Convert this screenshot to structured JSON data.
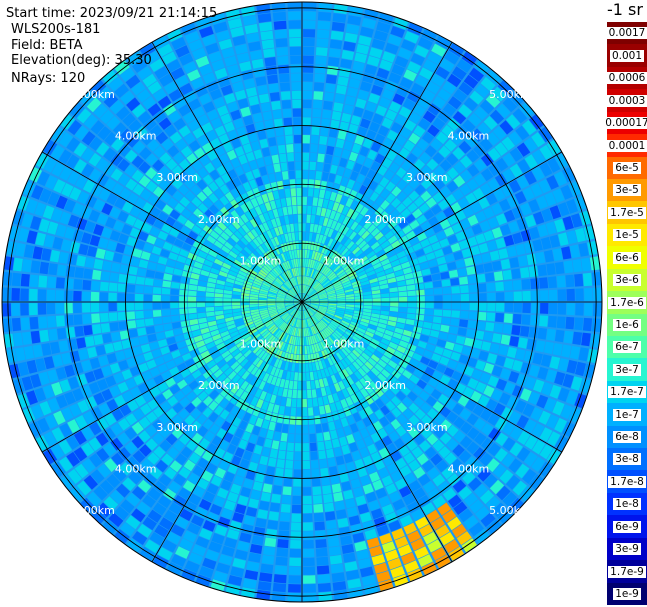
{
  "header": {
    "start_time": "Start time: 2023/09/21 21:14:15",
    "instrument": "WLS200s-181",
    "field": "Field: BETA",
    "elevation": "Elevation(deg): 35.30",
    "nrays": "NRays: 120"
  },
  "colorbar": {
    "unit_title": "-1 sr",
    "bins": [
      {
        "label": "0.0017",
        "color": "#7f0000"
      },
      {
        "label": "0.001",
        "color": "#9a0000"
      },
      {
        "label": "0.0006",
        "color": "#b40000"
      },
      {
        "label": "0.0003",
        "color": "#d00000"
      },
      {
        "label": "0.00017",
        "color": "#ec0000"
      },
      {
        "label": "0.0001",
        "color": "#ff2a00"
      },
      {
        "label": "6e-5",
        "color": "#ff6a00"
      },
      {
        "label": "3e-5",
        "color": "#ff9a00"
      },
      {
        "label": "1.7e-5",
        "color": "#ffc600"
      },
      {
        "label": "1e-5",
        "color": "#ffe900"
      },
      {
        "label": "6e-6",
        "color": "#f0ff00"
      },
      {
        "label": "3e-6",
        "color": "#c8ff2f"
      },
      {
        "label": "1.7e-6",
        "color": "#9dff5a"
      },
      {
        "label": "1e-6",
        "color": "#74ff83"
      },
      {
        "label": "6e-7",
        "color": "#4dffaa"
      },
      {
        "label": "3e-7",
        "color": "#26f5d1"
      },
      {
        "label": "1.7e-7",
        "color": "#00d4f0"
      },
      {
        "label": "1e-7",
        "color": "#00b0ff"
      },
      {
        "label": "6e-8",
        "color": "#0090ff"
      },
      {
        "label": "3e-8",
        "color": "#0070ff"
      },
      {
        "label": "1.7e-8",
        "color": "#0050ff"
      },
      {
        "label": "1e-8",
        "color": "#0032ff"
      },
      {
        "label": "6e-9",
        "color": "#0014ec"
      },
      {
        "label": "3e-9",
        "color": "#0000c8"
      },
      {
        "label": "1.7e-9",
        "color": "#00009a"
      },
      {
        "label": "1e-9",
        "color": "#000070"
      }
    ]
  },
  "chart_data": {
    "type": "heatmap",
    "projection": "polar (PPI scan)",
    "field": "BETA",
    "elevation_deg": 35.3,
    "n_rays": 120,
    "range_ring_labels": [
      "1.00km",
      "2.00km",
      "3.00km",
      "4.00km",
      "5.00km"
    ],
    "range_rings_km": [
      1,
      2,
      3,
      4,
      5
    ],
    "max_range_km": 5.1,
    "dominant_level": "1e-7 to 1.7e-7",
    "near_range_level": "3e-7 to 6e-7",
    "far_range_level": "6e-8 to 1.7e-7",
    "hotspot": {
      "azimuth_deg": [
        145,
        165
      ],
      "range_km": [
        4.2,
        5.1
      ],
      "level": "1e-5 to 6e-5"
    }
  }
}
